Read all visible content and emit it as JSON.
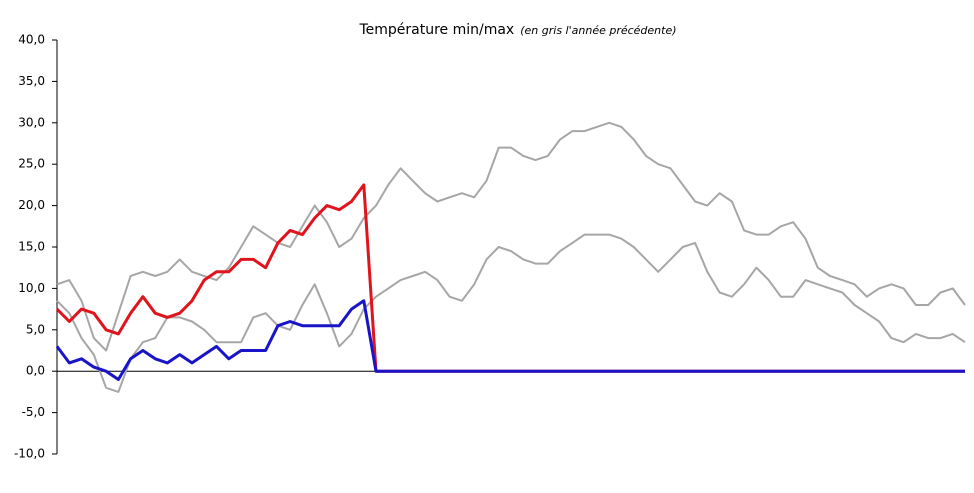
{
  "chart_data": {
    "type": "line",
    "title": "Température min/max",
    "subtitle": "(en gris l'année précédente)",
    "ylim": [
      -10,
      40
    ],
    "yticks": [
      {
        "value": -10,
        "label": "-10,0"
      },
      {
        "value": -5,
        "label": "-5,0"
      },
      {
        "value": 0,
        "label": "0,0"
      },
      {
        "value": 5,
        "label": "5,0"
      },
      {
        "value": 10,
        "label": "10,0"
      },
      {
        "value": 15,
        "label": "15,0"
      },
      {
        "value": 20,
        "label": "20,0"
      },
      {
        "value": 25,
        "label": "25,0"
      },
      {
        "value": 30,
        "label": "30,0"
      },
      {
        "value": 35,
        "label": "35,0"
      },
      {
        "value": 40,
        "label": "40,0"
      }
    ],
    "grid": false,
    "series": [
      {
        "color": "#a6a6a6",
        "width": 2,
        "values": [
          10.5,
          11,
          8.5,
          4,
          2.5,
          7,
          11.5,
          12,
          11.5,
          12,
          13.5,
          12,
          11.5,
          11,
          12.5,
          15,
          17.5,
          16.5,
          15.5,
          15,
          17.5,
          20,
          18,
          15,
          16,
          18.5,
          20,
          22.5,
          24.5,
          23,
          21.5,
          20.5,
          21,
          21.5,
          21,
          23,
          27,
          27,
          26,
          25.5,
          26,
          28,
          29,
          29,
          29.5,
          30,
          29.5,
          28,
          26,
          25,
          24.5,
          22.5,
          20.5,
          20,
          21.5,
          20.5,
          17,
          16.5,
          16.5,
          17.5,
          18,
          16,
          12.5,
          11.5,
          11,
          10.5,
          9,
          10,
          10.5,
          10,
          8,
          8,
          9.5,
          10,
          8
        ]
      },
      {
        "color": "#a6a6a6",
        "width": 2,
        "values": [
          8.5,
          7,
          4,
          2,
          -2,
          -2.5,
          1.5,
          3.5,
          4,
          6.5,
          6.5,
          6,
          5,
          3.5,
          3.5,
          3.5,
          6.5,
          7,
          5.5,
          5,
          8,
          10.5,
          7,
          3,
          4.5,
          7.5,
          9,
          10,
          11,
          11.5,
          12,
          11,
          9,
          8.5,
          10.5,
          13.5,
          15,
          14.5,
          13.5,
          13,
          13,
          14.5,
          15.5,
          16.5,
          16.5,
          16.5,
          16,
          15,
          13.5,
          12,
          13.5,
          15,
          15.5,
          12,
          9.5,
          9,
          10.5,
          12.5,
          11,
          9,
          9,
          11,
          10.5,
          10,
          9.5,
          8,
          7,
          6,
          4,
          3.5,
          4.5,
          4,
          4,
          4.5,
          3.5
        ]
      },
      {
        "color": "#e0141c",
        "width": 3,
        "values": [
          7.5,
          6,
          7.5,
          7,
          5,
          4.5,
          7,
          9,
          7,
          6.5,
          7,
          8.5,
          11,
          12,
          12,
          13.5,
          13.5,
          12.5,
          15.5,
          17,
          16.5,
          18.5,
          20,
          19.5,
          20.5,
          22.5,
          0,
          0,
          0,
          0,
          0,
          0,
          0,
          0,
          0,
          0,
          0,
          0,
          0,
          0,
          0,
          0,
          0,
          0,
          0,
          0,
          0,
          0,
          0,
          0,
          0,
          0,
          0,
          0,
          0,
          0,
          0,
          0,
          0,
          0,
          0,
          0,
          0,
          0,
          0,
          0,
          0,
          0,
          0,
          0,
          0,
          0,
          0,
          0,
          0
        ]
      },
      {
        "color": "#1a14c8",
        "width": 3,
        "values": [
          3,
          1,
          1.5,
          0.5,
          0,
          -1,
          1.5,
          2.5,
          1.5,
          1,
          2,
          1,
          2,
          3,
          1.5,
          2.5,
          2.5,
          2.5,
          5.5,
          6,
          5.5,
          5.5,
          5.5,
          5.5,
          7.5,
          8.5,
          0,
          0,
          0,
          0,
          0,
          0,
          0,
          0,
          0,
          0,
          0,
          0,
          0,
          0,
          0,
          0,
          0,
          0,
          0,
          0,
          0,
          0,
          0,
          0,
          0,
          0,
          0,
          0,
          0,
          0,
          0,
          0,
          0,
          0,
          0,
          0,
          0,
          0,
          0,
          0,
          0,
          0,
          0,
          0,
          0,
          0,
          0,
          0,
          0
        ]
      }
    ]
  }
}
